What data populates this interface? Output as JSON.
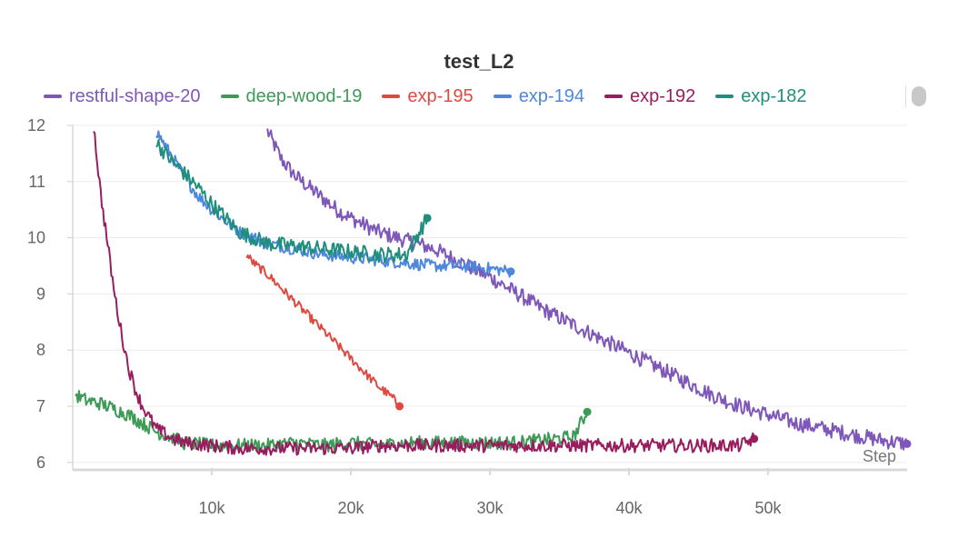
{
  "chart_data": {
    "type": "line",
    "title": "test_L2",
    "xlabel": "Step",
    "ylabel": "",
    "xlim": [
      0,
      60000
    ],
    "ylim": [
      5.9,
      12
    ],
    "x_ticks": [
      10000,
      20000,
      30000,
      40000,
      50000
    ],
    "x_tick_labels": [
      "10k",
      "20k",
      "30k",
      "40k",
      "50k"
    ],
    "y_ticks": [
      6,
      7,
      8,
      9,
      10,
      11,
      12
    ],
    "y_tick_labels": [
      "6",
      "7",
      "8",
      "9",
      "10",
      "11",
      "12"
    ],
    "grid": true,
    "legend_position": "top",
    "series": [
      {
        "name": "restful-shape-20",
        "color": "#7e57b8",
        "x": [
          14000,
          15000,
          16000,
          17000,
          18000,
          19000,
          20000,
          22000,
          24000,
          26000,
          28000,
          30000,
          32000,
          34000,
          36000,
          38000,
          40000,
          42000,
          44000,
          46000,
          48000,
          50000,
          52000,
          54000,
          56000,
          58000,
          60000
        ],
        "y": [
          11.9,
          11.4,
          11.1,
          10.9,
          10.7,
          10.5,
          10.35,
          10.1,
          9.95,
          9.8,
          9.55,
          9.3,
          9.0,
          8.7,
          8.45,
          8.2,
          7.95,
          7.7,
          7.45,
          7.2,
          7.0,
          6.85,
          6.7,
          6.6,
          6.5,
          6.4,
          6.33
        ]
      },
      {
        "name": "deep-wood-19",
        "color": "#3e9a57",
        "x": [
          200,
          1000,
          2000,
          3000,
          4000,
          5000,
          6000,
          7000,
          8000,
          10000,
          12000,
          14000,
          16000,
          18000,
          20000,
          22000,
          24000,
          26000,
          28000,
          30000,
          32000,
          34000,
          36000,
          37000
        ],
        "y": [
          7.2,
          7.1,
          7.05,
          6.95,
          6.85,
          6.7,
          6.55,
          6.45,
          6.35,
          6.3,
          6.3,
          6.3,
          6.35,
          6.3,
          6.35,
          6.3,
          6.35,
          6.35,
          6.35,
          6.35,
          6.35,
          6.4,
          6.45,
          6.9
        ]
      },
      {
        "name": "exp-195",
        "color": "#de4a40",
        "x": [
          12500,
          13000,
          14000,
          15000,
          16000,
          17000,
          18000,
          19000,
          20000,
          21000,
          22000,
          23000,
          23500
        ],
        "y": [
          9.7,
          9.55,
          9.35,
          9.1,
          8.85,
          8.6,
          8.35,
          8.1,
          7.85,
          7.6,
          7.35,
          7.15,
          7.0
        ]
      },
      {
        "name": "exp-194",
        "color": "#4e88dc",
        "x": [
          6000,
          7000,
          8000,
          9000,
          10000,
          11000,
          12000,
          14000,
          16000,
          18000,
          20000,
          22000,
          24000,
          26000,
          28000,
          30000,
          31500
        ],
        "y": [
          11.9,
          11.5,
          11.1,
          10.75,
          10.5,
          10.3,
          10.1,
          9.9,
          9.8,
          9.7,
          9.65,
          9.6,
          9.55,
          9.5,
          9.5,
          9.45,
          9.4
        ]
      },
      {
        "name": "exp-192",
        "color": "#981c5e",
        "x": [
          1500,
          2000,
          2500,
          3000,
          3500,
          4000,
          4500,
          5000,
          5500,
          6000,
          7000,
          8000,
          10000,
          12000,
          14000,
          16000,
          18000,
          20000,
          22000,
          24000,
          26000,
          28000,
          30000,
          32000,
          34000,
          36000,
          38000,
          40000,
          42000,
          44000,
          46000,
          48000,
          49000
        ],
        "y": [
          12.0,
          10.8,
          9.9,
          9.0,
          8.3,
          7.7,
          7.3,
          7.0,
          6.8,
          6.6,
          6.45,
          6.35,
          6.3,
          6.25,
          6.25,
          6.25,
          6.25,
          6.25,
          6.3,
          6.3,
          6.3,
          6.3,
          6.3,
          6.3,
          6.3,
          6.3,
          6.3,
          6.3,
          6.3,
          6.3,
          6.3,
          6.3,
          6.42
        ]
      },
      {
        "name": "exp-182",
        "color": "#1f8e7e",
        "x": [
          6000,
          7000,
          8000,
          9000,
          10000,
          11000,
          12000,
          14000,
          16000,
          18000,
          20000,
          22000,
          24000,
          25500
        ],
        "y": [
          11.7,
          11.4,
          11.15,
          10.9,
          10.6,
          10.35,
          10.1,
          9.9,
          9.85,
          9.8,
          9.75,
          9.7,
          9.7,
          10.35
        ]
      }
    ]
  }
}
